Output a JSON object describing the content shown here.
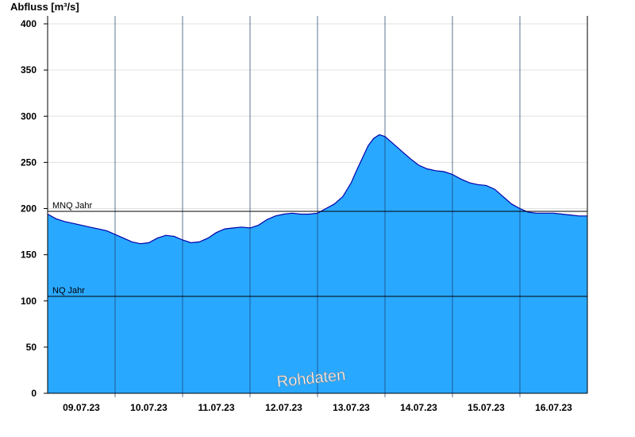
{
  "chart_data": {
    "type": "area",
    "ylabel": "Abfluss [m³/s]",
    "ylim": [
      0,
      400
    ],
    "yticks": [
      0,
      50,
      100,
      150,
      200,
      250,
      300,
      350,
      400
    ],
    "xlim": [
      "09.07.23 00:00",
      "17.07.23 00:00"
    ],
    "xticks": [
      "09.07.23",
      "10.07.23",
      "11.07.23",
      "12.07.23",
      "13.07.23",
      "14.07.23",
      "15.07.23",
      "16.07.23"
    ],
    "reference_lines": [
      {
        "label": "MNQ Jahr",
        "value": 197
      },
      {
        "label": "NQ Jahr",
        "value": 105
      }
    ],
    "watermark": "Rohdaten",
    "grid": "horizontal light lines, vertical lines at midnight",
    "colors": {
      "fill": "#29a8ff",
      "line": "#0000aa",
      "ref_line": "#000000",
      "grid": "#e0e0e0"
    },
    "series": [
      {
        "x_hours": [
          0,
          3,
          6,
          9,
          12,
          15,
          18,
          21,
          24,
          27,
          30,
          33,
          36,
          39,
          42,
          45,
          48,
          51,
          54,
          57,
          60,
          63,
          66,
          69,
          72,
          75,
          78,
          81,
          84,
          87,
          90,
          93,
          96,
          99,
          102,
          105,
          108,
          110,
          112,
          114,
          116,
          118,
          120,
          123,
          126,
          129,
          132,
          135,
          138,
          141,
          144,
          147,
          150,
          153,
          156,
          159,
          162,
          165,
          168,
          171,
          174,
          177,
          180,
          183,
          186,
          189,
          192
        ],
        "values": [
          194,
          189,
          186,
          184,
          182,
          180,
          178,
          176,
          172,
          168,
          164,
          162,
          163,
          168,
          171,
          170,
          166,
          163,
          164,
          168,
          174,
          178,
          179,
          180,
          179,
          182,
          188,
          192,
          194,
          195,
          194,
          194,
          195,
          200,
          205,
          213,
          228,
          242,
          255,
          268,
          276,
          280,
          278,
          270,
          262,
          254,
          247,
          243,
          241,
          240,
          237,
          232,
          228,
          226,
          225,
          221,
          213,
          205,
          200,
          196,
          195,
          195,
          195,
          194,
          193,
          192,
          192
        ]
      }
    ]
  }
}
